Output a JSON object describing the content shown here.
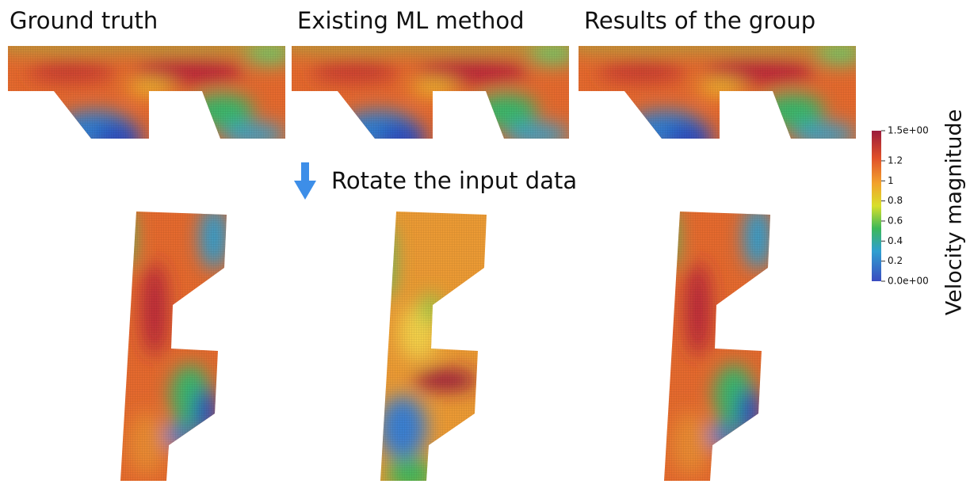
{
  "panels": {
    "titles": [
      "Ground truth",
      "Existing ML method",
      "Results of the group"
    ]
  },
  "annotation": "Rotate the input data",
  "colorbar": {
    "title": "Velocity magnitude",
    "lim": [
      0,
      1.5
    ],
    "ticks": [
      {
        "value": 1.5,
        "label": "1.5e+00"
      },
      1.2,
      1,
      0.8,
      0.6,
      0.4,
      0.2,
      {
        "value": 0,
        "label": "0.0e+00"
      }
    ]
  }
}
